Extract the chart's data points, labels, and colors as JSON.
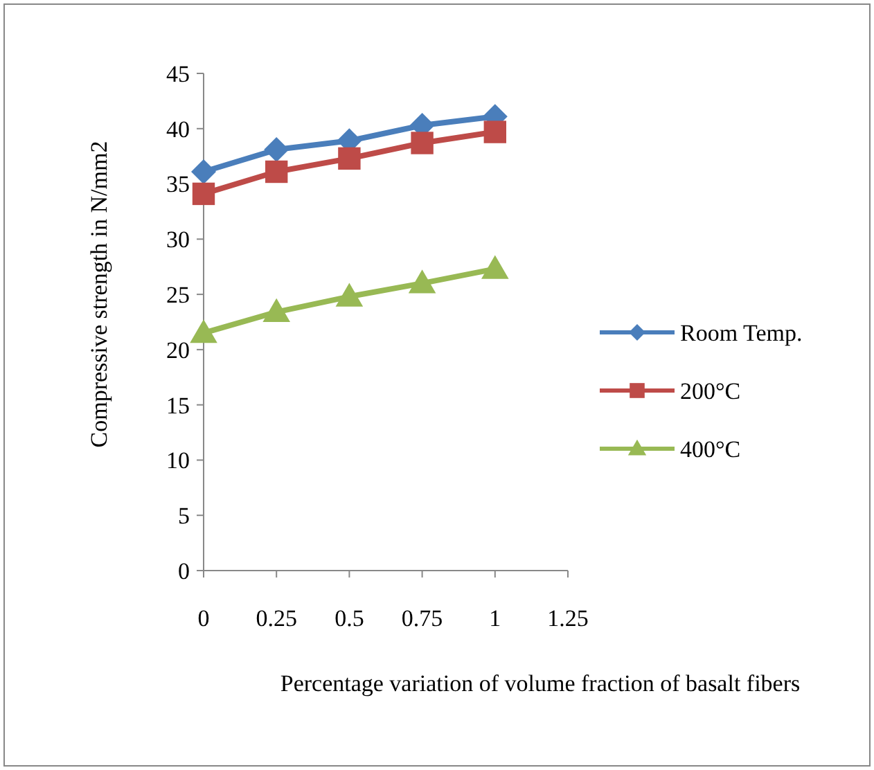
{
  "chart_data": {
    "type": "line",
    "xlabel": "Percentage variation of volume fraction of basalt fibers",
    "ylabel": "Compressive strength in N/mm2",
    "x": [
      0,
      0.25,
      0.5,
      0.75,
      1
    ],
    "xlim": [
      0,
      1.25
    ],
    "xticks": [
      0,
      0.25,
      0.5,
      0.75,
      1,
      1.25
    ],
    "ylim": [
      0,
      45
    ],
    "yticks": [
      0,
      5,
      10,
      15,
      20,
      25,
      30,
      35,
      40,
      45
    ],
    "grid": false,
    "legend": "right",
    "series": [
      {
        "name": "Room Temp.",
        "color": "#4a7ebb",
        "marker": "diamond",
        "values": [
          36.1,
          38.1,
          38.9,
          40.3,
          41.1
        ]
      },
      {
        "name": "200°C",
        "color": "#be4b48",
        "marker": "square",
        "values": [
          34.1,
          36.1,
          37.3,
          38.7,
          39.7
        ]
      },
      {
        "name": "400°C",
        "color": "#98b954",
        "marker": "triangle",
        "values": [
          21.5,
          23.4,
          24.8,
          26.0,
          27.3
        ]
      }
    ]
  }
}
